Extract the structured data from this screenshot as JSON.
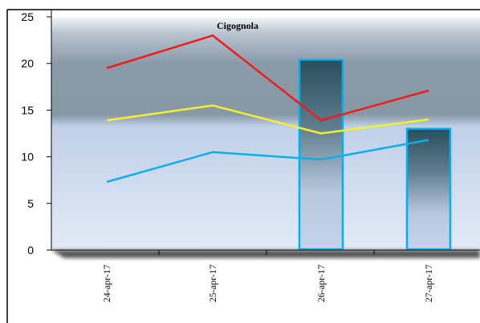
{
  "chart_data": {
    "type": "line",
    "title": "Cigognola",
    "xlabel": "",
    "ylabel": "",
    "categories": [
      "24-apr-17",
      "25-apr-17",
      "26-apr-17",
      "27-apr-17"
    ],
    "ylim": [
      0,
      25
    ],
    "yticks": [
      0,
      5,
      10,
      15,
      20,
      25
    ],
    "grid": false,
    "legend": "none",
    "bars": {
      "values": [
        null,
        null,
        20.4,
        13
      ],
      "color": "#00b0f0"
    },
    "series": [
      {
        "values": [
          19.5,
          23,
          13.9,
          17.1
        ],
        "color": "#ee1c1c"
      },
      {
        "values": [
          13.9,
          15.5,
          12.5,
          14
        ],
        "color": "#f5f02c"
      },
      {
        "values": [
          7.3,
          10.5,
          9.7,
          11.8
        ],
        "color": "#10aee8"
      }
    ]
  }
}
